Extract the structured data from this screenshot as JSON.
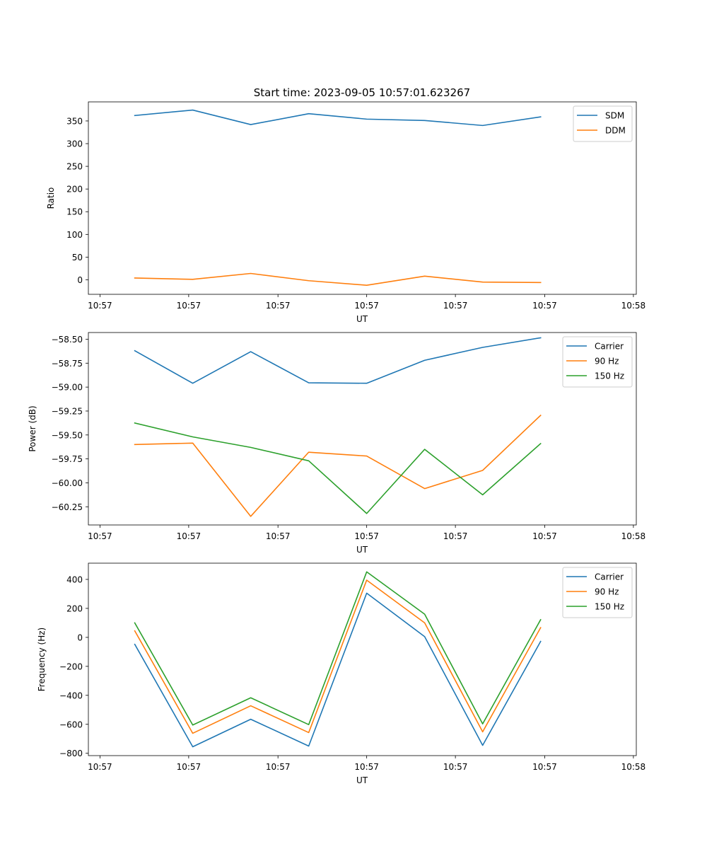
{
  "figure_title": "Start time: 2023-09-05 10:57:01.623267",
  "colors": {
    "blue": "#1f77b4",
    "orange": "#ff7f0e",
    "green": "#2ca02c"
  },
  "chart_data": [
    {
      "type": "line",
      "title": "Start time: 2023-09-05 10:57:01.623267",
      "xlabel": "UT",
      "ylabel": "Ratio",
      "x": [
        1,
        2,
        3,
        4,
        5,
        6,
        7,
        8
      ],
      "xlim": [
        0.2,
        9.65
      ],
      "ylim": [
        -32,
        392
      ],
      "xticks": [
        0.4,
        1.93,
        3.47,
        5.0,
        6.53,
        8.07,
        9.6
      ],
      "xtick_labels": [
        "10:57",
        "10:57",
        "10:57",
        "10:57",
        "10:57",
        "10:57",
        "10:58"
      ],
      "yticks": [
        0,
        50,
        100,
        150,
        200,
        250,
        300,
        350
      ],
      "ytick_labels": [
        "0",
        "50",
        "100",
        "150",
        "200",
        "250",
        "300",
        "350"
      ],
      "legend_loc": "top-right",
      "series": [
        {
          "name": "SDM",
          "color": "#1f77b4",
          "values": [
            362,
            374,
            342,
            366,
            354,
            351,
            340,
            359
          ]
        },
        {
          "name": "DDM",
          "color": "#ff7f0e",
          "values": [
            4,
            1,
            14,
            -2,
            -12,
            8,
            -5,
            -6
          ]
        }
      ]
    },
    {
      "type": "line",
      "title": "",
      "xlabel": "UT",
      "ylabel": "Power (dB)",
      "x": [
        1,
        2,
        3,
        4,
        5,
        6,
        7,
        8
      ],
      "xlim": [
        0.2,
        9.65
      ],
      "ylim": [
        -60.44,
        -58.43
      ],
      "xticks": [
        0.4,
        1.93,
        3.47,
        5.0,
        6.53,
        8.07,
        9.6
      ],
      "xtick_labels": [
        "10:57",
        "10:57",
        "10:57",
        "10:57",
        "10:57",
        "10:57",
        "10:58"
      ],
      "yticks": [
        -60.25,
        -60.0,
        -59.75,
        -59.5,
        -59.25,
        -59.0,
        -58.75,
        -58.5
      ],
      "ytick_labels": [
        "−60.25",
        "−60.00",
        "−59.75",
        "−59.50",
        "−59.25",
        "−59.00",
        "−58.75",
        "−58.50"
      ],
      "legend_loc": "top-right",
      "series": [
        {
          "name": "Carrier",
          "color": "#1f77b4",
          "values": [
            -58.62,
            -58.96,
            -58.63,
            -58.955,
            -58.96,
            -58.72,
            -58.585,
            -58.485
          ]
        },
        {
          "name": "90 Hz",
          "color": "#ff7f0e",
          "values": [
            -59.6,
            -59.585,
            -60.35,
            -59.68,
            -59.72,
            -60.06,
            -59.87,
            -59.295
          ]
        },
        {
          "name": "150 Hz",
          "color": "#2ca02c",
          "values": [
            -59.375,
            -59.52,
            -59.63,
            -59.77,
            -60.32,
            -59.65,
            -60.125,
            -59.59
          ]
        }
      ]
    },
    {
      "type": "line",
      "title": "",
      "xlabel": "UT",
      "ylabel": "Frequency (Hz)",
      "x": [
        1,
        2,
        3,
        4,
        5,
        6,
        7,
        8
      ],
      "xlim": [
        0.2,
        9.65
      ],
      "ylim": [
        -816,
        512
      ],
      "xticks": [
        0.4,
        1.93,
        3.47,
        5.0,
        6.53,
        8.07,
        9.6
      ],
      "xtick_labels": [
        "10:57",
        "10:57",
        "10:57",
        "10:57",
        "10:57",
        "10:57",
        "10:58"
      ],
      "yticks": [
        -800,
        -600,
        -400,
        -200,
        0,
        200,
        400
      ],
      "ytick_labels": [
        "−800",
        "−600",
        "−400",
        "−200",
        "0",
        "200",
        "400"
      ],
      "legend_loc": "top-right",
      "series": [
        {
          "name": "Carrier",
          "color": "#1f77b4",
          "values": [
            -48,
            -755,
            -565,
            -750,
            305,
            5,
            -745,
            -28
          ]
        },
        {
          "name": "90 Hz",
          "color": "#ff7f0e",
          "values": [
            45,
            -662,
            -472,
            -657,
            395,
            100,
            -652,
            67
          ]
        },
        {
          "name": "150 Hz",
          "color": "#2ca02c",
          "values": [
            100,
            -605,
            -417,
            -602,
            452,
            160,
            -597,
            122
          ]
        }
      ]
    }
  ]
}
